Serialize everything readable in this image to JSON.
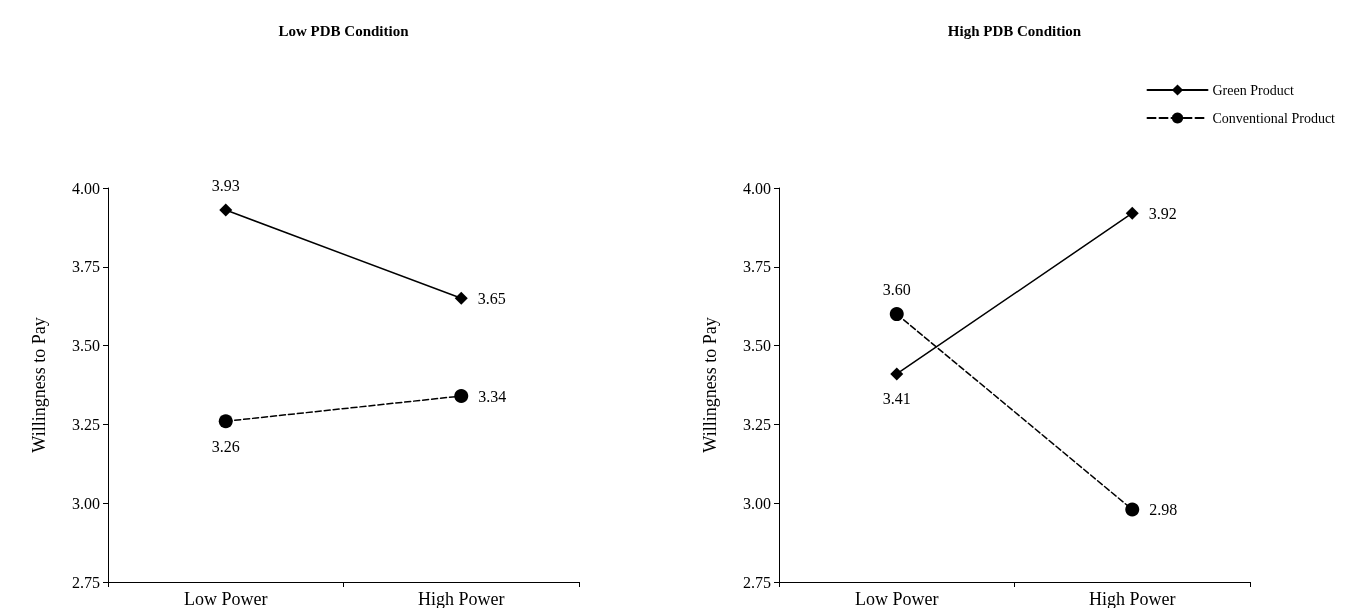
{
  "chart_data": [
    {
      "type": "line",
      "title": "Low PDB Condition",
      "ylabel": "Willingness to Pay",
      "categories": [
        "Low Power",
        "High Power"
      ],
      "series": [
        {
          "color": "#000000",
          "values": [
            3.93,
            3.65
          ],
          "value_labels": [
            "3.93",
            "3.65"
          ],
          "marker": "diamond",
          "line_style": "solid"
        },
        {
          "color": "#000000",
          "values": [
            3.26,
            3.34
          ],
          "value_labels": [
            "3.26",
            "3.34"
          ],
          "marker": "circle",
          "line_style": "dashed"
        }
      ],
      "ylim": [
        2.75,
        4
      ],
      "yticks": [
        2.75,
        {
          "value": 3,
          "label": "3.00"
        },
        3.25,
        {
          "value": 3.5,
          "label": "3.50"
        },
        3.75,
        {
          "value": 4,
          "label": "4.00"
        }
      ],
      "grid": false,
      "legend": false
    },
    {
      "type": "line",
      "title": "High PDB Condition",
      "ylabel": "Willingness to Pay",
      "categories": [
        "Low Power",
        "High Power"
      ],
      "series": [
        {
          "name": "Green Product",
          "color": "#000000",
          "values": [
            3.41,
            3.92
          ],
          "value_labels": [
            "3.41",
            "3.92"
          ],
          "marker": "diamond",
          "line_style": "solid"
        },
        {
          "name": "Conventional Product",
          "color": "#000000",
          "values": [
            3.6,
            2.98
          ],
          "value_labels": [
            "3.60",
            "2.98"
          ],
          "marker": "circle",
          "line_style": "dashed"
        }
      ],
      "ylim": [
        2.75,
        4
      ],
      "yticks": [
        2.75,
        {
          "value": 3,
          "label": "3.00"
        },
        3.25,
        {
          "value": 3.5,
          "label": "3.50"
        },
        3.75,
        {
          "value": 4,
          "label": "4.00"
        }
      ],
      "grid": false,
      "legend": "top right"
    }
  ]
}
